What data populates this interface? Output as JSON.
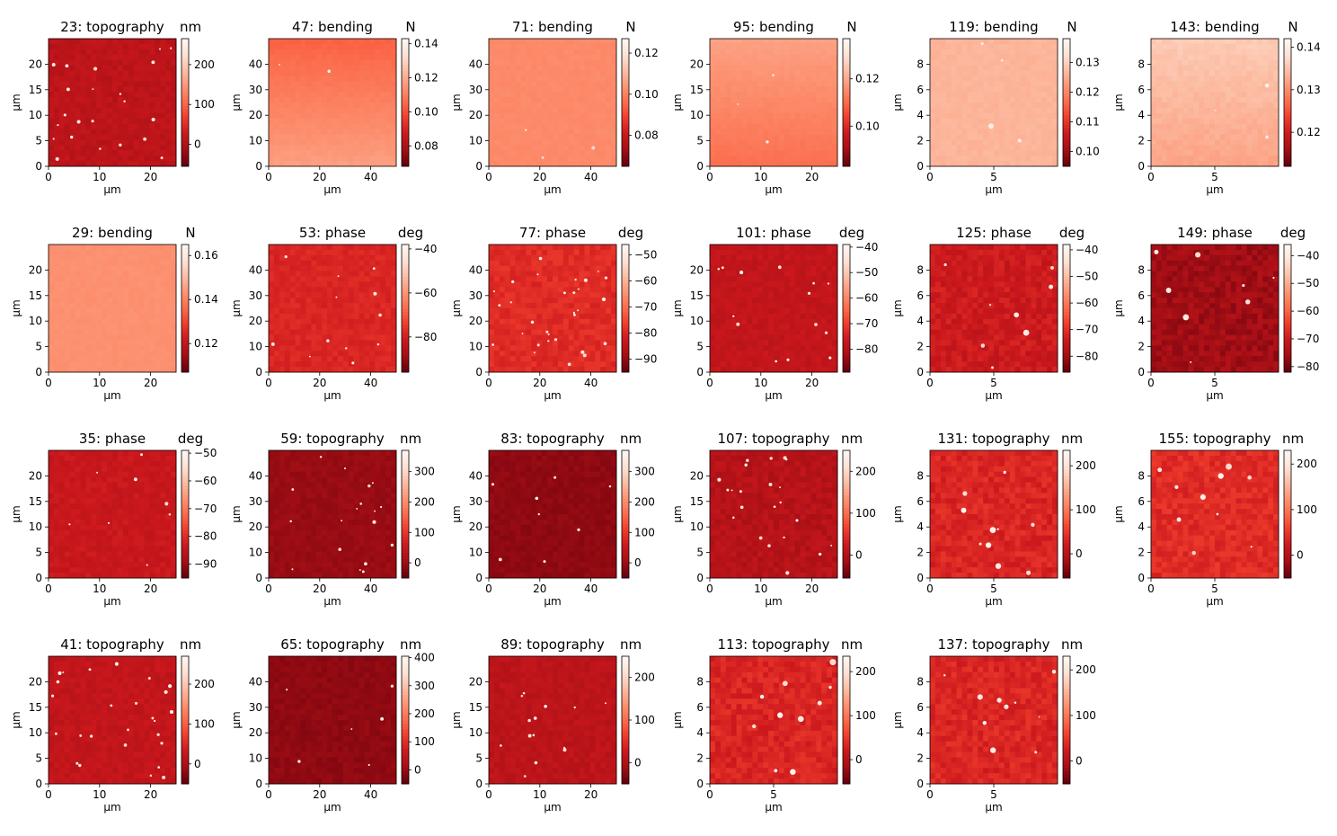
{
  "figure": {
    "background": "#ffffff"
  },
  "colormap": {
    "name": "Reds_r",
    "stops": [
      "#67000d",
      "#a50f15",
      "#cb181d",
      "#ef3b2c",
      "#fb6a4a",
      "#fc9272",
      "#fcbba1",
      "#fee0d2",
      "#fff5f0"
    ]
  },
  "chart_data": [
    {
      "id": "23",
      "title": "23: topography",
      "unit": "nm",
      "type": "heatmap",
      "xlabel": "µm",
      "ylabel": "µm",
      "xlim": [
        0,
        25
      ],
      "ylim": [
        0,
        25
      ],
      "xticks": [
        0,
        10,
        20
      ],
      "yticks": [
        0,
        5,
        10,
        15,
        20
      ],
      "clim": [
        -55,
        265
      ],
      "cticks": [
        0,
        100,
        200
      ],
      "base": 0.2,
      "grain": 0.03,
      "spots": 22
    },
    {
      "id": "47",
      "title": "47: bending",
      "unit": "N",
      "type": "heatmap",
      "xlabel": "µm",
      "ylabel": "µm",
      "xlim": [
        0,
        50
      ],
      "ylim": [
        0,
        50
      ],
      "xticks": [
        0,
        20,
        40
      ],
      "yticks": [
        0,
        10,
        20,
        30,
        40
      ],
      "clim": [
        0.068,
        0.143
      ],
      "cticks": [
        0.08,
        0.1,
        0.12,
        0.14
      ],
      "gradient": [
        0.48,
        0.66
      ],
      "grain": 0.01,
      "spots": 2
    },
    {
      "id": "71",
      "title": "71: bending",
      "unit": "N",
      "type": "heatmap",
      "xlabel": "µm",
      "ylabel": "µm",
      "xlim": [
        0,
        50
      ],
      "ylim": [
        0,
        50
      ],
      "xticks": [
        0,
        20,
        40
      ],
      "yticks": [
        0,
        10,
        20,
        30,
        40
      ],
      "clim": [
        0.065,
        0.127
      ],
      "cticks": [
        0.08,
        0.1,
        0.12
      ],
      "base": 0.6,
      "grain": 0.01,
      "spots": 3
    },
    {
      "id": "95",
      "title": "95: bending",
      "unit": "N",
      "type": "heatmap",
      "xlabel": "µm",
      "ylabel": "µm",
      "xlim": [
        0,
        25
      ],
      "ylim": [
        0,
        25
      ],
      "xticks": [
        0,
        10,
        20
      ],
      "yticks": [
        0,
        5,
        10,
        15,
        20
      ],
      "clim": [
        0.083,
        0.137
      ],
      "cticks": [
        0.1,
        0.12
      ],
      "gradient": [
        0.67,
        0.52
      ],
      "grain": 0.01,
      "spots": 3
    },
    {
      "id": "119",
      "title": "119: bending",
      "unit": "N",
      "type": "heatmap",
      "xlabel": "µm",
      "ylabel": "µm",
      "xlim": [
        0,
        10
      ],
      "ylim": [
        0,
        10
      ],
      "xticks": [
        0,
        5
      ],
      "yticks": [
        0,
        2,
        4,
        6,
        8
      ],
      "clim": [
        0.095,
        0.138
      ],
      "cticks": [
        0.1,
        0.11,
        0.12,
        0.13
      ],
      "base": 0.73,
      "grain": 0.015,
      "spots": 4
    },
    {
      "id": "143",
      "title": "143: bending",
      "unit": "N",
      "type": "heatmap",
      "xlabel": "µm",
      "ylabel": "µm",
      "xlim": [
        0,
        10
      ],
      "ylim": [
        0,
        10
      ],
      "xticks": [
        0,
        5
      ],
      "yticks": [
        0,
        2,
        4,
        6,
        8
      ],
      "clim": [
        0.112,
        0.142
      ],
      "cticks": [
        0.12,
        0.13,
        0.14
      ],
      "gradient": [
        0.8,
        0.68
      ],
      "grain": 0.02,
      "spots": 3
    },
    {
      "id": "29",
      "title": "29: bending",
      "unit": "N",
      "type": "heatmap",
      "xlabel": "µm",
      "ylabel": "µm",
      "xlim": [
        0,
        25
      ],
      "ylim": [
        0,
        25
      ],
      "xticks": [
        0,
        10,
        20
      ],
      "yticks": [
        0,
        5,
        10,
        15,
        20
      ],
      "clim": [
        0.107,
        0.165
      ],
      "cticks": [
        0.12,
        0.14,
        0.16
      ],
      "base": 0.62,
      "grain": 0.01,
      "spots": 0
    },
    {
      "id": "53",
      "title": "53: phase",
      "unit": "deg",
      "type": "heatmap",
      "xlabel": "µm",
      "ylabel": "µm",
      "xlim": [
        0,
        50
      ],
      "ylim": [
        0,
        50
      ],
      "xticks": [
        0,
        20,
        40
      ],
      "yticks": [
        0,
        10,
        20,
        30,
        40
      ],
      "clim": [
        -96,
        -38
      ],
      "cticks": [
        -80,
        -60,
        -40
      ],
      "base": 0.3,
      "grain": 0.03,
      "spots": 12
    },
    {
      "id": "77",
      "title": "77: phase",
      "unit": "deg",
      "type": "heatmap",
      "xlabel": "µm",
      "ylabel": "µm",
      "xlim": [
        0,
        50
      ],
      "ylim": [
        0,
        50
      ],
      "xticks": [
        0,
        20,
        40
      ],
      "yticks": [
        0,
        10,
        20,
        30,
        40
      ],
      "clim": [
        -95,
        -46
      ],
      "cticks": [
        -90,
        -80,
        -70,
        -60,
        -50
      ],
      "base": 0.32,
      "grain": 0.04,
      "spots": 30
    },
    {
      "id": "101",
      "title": "101: phase",
      "unit": "deg",
      "type": "heatmap",
      "xlabel": "µm",
      "ylabel": "µm",
      "xlim": [
        0,
        25
      ],
      "ylim": [
        0,
        25
      ],
      "xticks": [
        0,
        10,
        20
      ],
      "yticks": [
        0,
        5,
        10,
        15,
        20
      ],
      "clim": [
        -89,
        -39
      ],
      "cticks": [
        -80,
        -70,
        -60,
        -50,
        -40
      ],
      "base": 0.22,
      "grain": 0.03,
      "spots": 14
    },
    {
      "id": "125",
      "title": "125: phase",
      "unit": "deg",
      "type": "heatmap",
      "xlabel": "µm",
      "ylabel": "µm",
      "xlim": [
        0,
        10
      ],
      "ylim": [
        0,
        10
      ],
      "xticks": [
        0,
        5
      ],
      "yticks": [
        0,
        2,
        4,
        6,
        8
      ],
      "clim": [
        -86,
        -38
      ],
      "cticks": [
        -80,
        -70,
        -60,
        -50,
        -40
      ],
      "base": 0.25,
      "grain": 0.05,
      "spots": 8
    },
    {
      "id": "149",
      "title": "149: phase",
      "unit": "deg",
      "type": "heatmap",
      "xlabel": "µm",
      "ylabel": "µm",
      "xlim": [
        0,
        10
      ],
      "ylim": [
        0,
        10
      ],
      "xticks": [
        0,
        5
      ],
      "yticks": [
        0,
        2,
        4,
        6,
        8
      ],
      "clim": [
        -82,
        -36
      ],
      "cticks": [
        -80,
        -70,
        -60,
        -50,
        -40
      ],
      "base": 0.12,
      "grain": 0.05,
      "spots": 8
    },
    {
      "id": "35",
      "title": "35: phase",
      "unit": "deg",
      "type": "heatmap",
      "xlabel": "µm",
      "ylabel": "µm",
      "xlim": [
        0,
        25
      ],
      "ylim": [
        0,
        25
      ],
      "xticks": [
        0,
        10,
        20
      ],
      "yticks": [
        0,
        5,
        10,
        15,
        20
      ],
      "clim": [
        -95,
        -49
      ],
      "cticks": [
        -90,
        -80,
        -70,
        -60,
        -50
      ],
      "base": 0.24,
      "grain": 0.03,
      "spots": 8
    },
    {
      "id": "59",
      "title": "59: topography",
      "unit": "nm",
      "type": "heatmap",
      "xlabel": "µm",
      "ylabel": "µm",
      "xlim": [
        0,
        50
      ],
      "ylim": [
        0,
        50
      ],
      "xticks": [
        0,
        20,
        40
      ],
      "yticks": [
        0,
        10,
        20,
        30,
        40
      ],
      "clim": [
        -50,
        370
      ],
      "cticks": [
        0,
        100,
        200,
        300
      ],
      "base": 0.1,
      "grain": 0.02,
      "spots": 18
    },
    {
      "id": "83",
      "title": "83: topography",
      "unit": "nm",
      "type": "heatmap",
      "xlabel": "µm",
      "ylabel": "µm",
      "xlim": [
        0,
        50
      ],
      "ylim": [
        0,
        50
      ],
      "xticks": [
        0,
        20,
        40
      ],
      "yticks": [
        0,
        10,
        20,
        30,
        40
      ],
      "clim": [
        -50,
        370
      ],
      "cticks": [
        0,
        100,
        200,
        300
      ],
      "base": 0.08,
      "grain": 0.02,
      "spots": 8
    },
    {
      "id": "107",
      "title": "107: topography",
      "unit": "nm",
      "type": "heatmap",
      "xlabel": "µm",
      "ylabel": "µm",
      "xlim": [
        0,
        25
      ],
      "ylim": [
        0,
        25
      ],
      "xticks": [
        0,
        10,
        20
      ],
      "yticks": [
        0,
        5,
        10,
        15,
        20
      ],
      "clim": [
        -55,
        250
      ],
      "cticks": [
        0,
        100,
        200
      ],
      "base": 0.18,
      "grain": 0.04,
      "spots": 22
    },
    {
      "id": "131",
      "title": "131: topography",
      "unit": "nm",
      "type": "heatmap",
      "xlabel": "µm",
      "ylabel": "µm",
      "xlim": [
        0,
        10
      ],
      "ylim": [
        0,
        10
      ],
      "xticks": [
        0,
        5
      ],
      "yticks": [
        0,
        2,
        4,
        6,
        8
      ],
      "clim": [
        -55,
        235
      ],
      "cticks": [
        0,
        100,
        200
      ],
      "base": 0.3,
      "grain": 0.05,
      "spots": 10
    },
    {
      "id": "155",
      "title": "155: topography",
      "unit": "nm",
      "type": "heatmap",
      "xlabel": "µm",
      "ylabel": "µm",
      "xlim": [
        0,
        10
      ],
      "ylim": [
        0,
        10
      ],
      "xticks": [
        0,
        5
      ],
      "yticks": [
        0,
        2,
        4,
        6,
        8
      ],
      "clim": [
        -50,
        230
      ],
      "cticks": [
        0,
        100,
        200
      ],
      "base": 0.32,
      "grain": 0.05,
      "spots": 10
    },
    {
      "id": "41",
      "title": "41: topography",
      "unit": "nm",
      "type": "heatmap",
      "xlabel": "µm",
      "ylabel": "µm",
      "xlim": [
        0,
        25
      ],
      "ylim": [
        0,
        25
      ],
      "xticks": [
        0,
        10,
        20
      ],
      "yticks": [
        0,
        5,
        10,
        15,
        20
      ],
      "clim": [
        -50,
        270
      ],
      "cticks": [
        0,
        100,
        200
      ],
      "base": 0.22,
      "grain": 0.03,
      "spots": 26
    },
    {
      "id": "65",
      "title": "65: topography",
      "unit": "nm",
      "type": "heatmap",
      "xlabel": "µm",
      "ylabel": "µm",
      "xlim": [
        0,
        50
      ],
      "ylim": [
        0,
        50
      ],
      "xticks": [
        0,
        20,
        40
      ],
      "yticks": [
        0,
        10,
        20,
        30,
        40
      ],
      "clim": [
        -50,
        405
      ],
      "cticks": [
        0,
        100,
        200,
        300,
        400
      ],
      "base": 0.08,
      "grain": 0.02,
      "spots": 6
    },
    {
      "id": "89",
      "title": "89: topography",
      "unit": "nm",
      "type": "heatmap",
      "xlabel": "µm",
      "ylabel": "µm",
      "xlim": [
        0,
        25
      ],
      "ylim": [
        0,
        25
      ],
      "xticks": [
        0,
        10,
        20
      ],
      "yticks": [
        0,
        5,
        10,
        15,
        20
      ],
      "clim": [
        -50,
        250
      ],
      "cticks": [
        0,
        100,
        200
      ],
      "base": 0.2,
      "grain": 0.03,
      "spots": 14
    },
    {
      "id": "113",
      "title": "113: topography",
      "unit": "nm",
      "type": "heatmap",
      "xlabel": "µm",
      "ylabel": "µm",
      "xlim": [
        0,
        10
      ],
      "ylim": [
        0,
        10
      ],
      "xticks": [
        0,
        5
      ],
      "yticks": [
        0,
        2,
        4,
        6,
        8
      ],
      "clim": [
        -55,
        235
      ],
      "cticks": [
        0,
        100,
        200
      ],
      "base": 0.3,
      "grain": 0.05,
      "spots": 10
    },
    {
      "id": "137",
      "title": "137: topography",
      "unit": "nm",
      "type": "heatmap",
      "xlabel": "µm",
      "ylabel": "µm",
      "xlim": [
        0,
        10
      ],
      "ylim": [
        0,
        10
      ],
      "xticks": [
        0,
        5
      ],
      "yticks": [
        0,
        2,
        4,
        6,
        8
      ],
      "clim": [
        -50,
        230
      ],
      "cticks": [
        0,
        100,
        200
      ],
      "base": 0.3,
      "grain": 0.05,
      "spots": 10
    }
  ]
}
